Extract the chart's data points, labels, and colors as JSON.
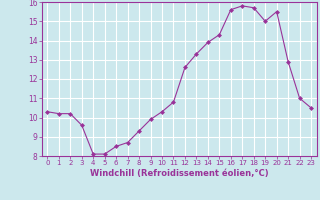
{
  "x": [
    0,
    1,
    2,
    3,
    4,
    5,
    6,
    7,
    8,
    9,
    10,
    11,
    12,
    13,
    14,
    15,
    16,
    17,
    18,
    19,
    20,
    21,
    22,
    23
  ],
  "y": [
    10.3,
    10.2,
    10.2,
    9.6,
    8.1,
    8.1,
    8.5,
    8.7,
    9.3,
    9.9,
    10.3,
    10.8,
    12.6,
    13.3,
    13.9,
    14.3,
    15.6,
    15.8,
    15.7,
    15.0,
    15.5,
    12.9,
    11.0,
    10.5
  ],
  "line_color": "#993399",
  "marker": "D",
  "marker_size": 2,
  "background_color": "#cce8ed",
  "grid_color": "#ffffff",
  "xlabel": "Windchill (Refroidissement éolien,°C)",
  "xlabel_color": "#993399",
  "tick_color": "#993399",
  "ylim": [
    8,
    16
  ],
  "xlim": [
    -0.5,
    23.5
  ],
  "yticks": [
    8,
    9,
    10,
    11,
    12,
    13,
    14,
    15,
    16
  ],
  "xticks": [
    0,
    1,
    2,
    3,
    4,
    5,
    6,
    7,
    8,
    9,
    10,
    11,
    12,
    13,
    14,
    15,
    16,
    17,
    18,
    19,
    20,
    21,
    22,
    23
  ]
}
